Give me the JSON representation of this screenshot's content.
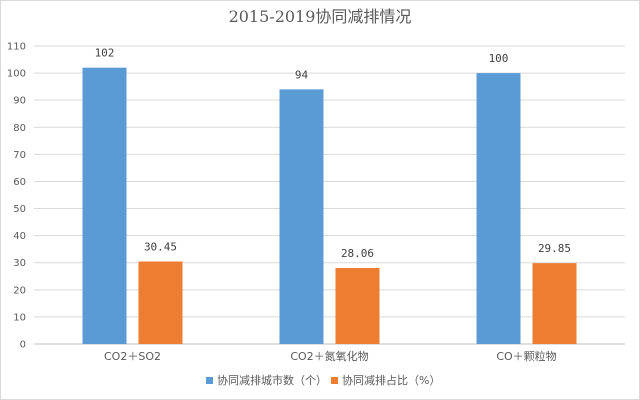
{
  "chart_data": {
    "type": "bar",
    "title": "2015-2019协同减排情况",
    "categories": [
      "CO2＋SO2",
      "CO2＋氮氧化物",
      "CO＋颗粒物"
    ],
    "series": [
      {
        "name": "协同减排城市数（个）",
        "values": [
          102,
          94,
          100
        ],
        "labels": [
          "102",
          "94",
          "100"
        ],
        "color": "#5b9bd5"
      },
      {
        "name": "协同减排占比（%）",
        "values": [
          30.45,
          28.06,
          29.85
        ],
        "labels": [
          "30.45",
          "28.06",
          "29.85"
        ],
        "color": "#ed7d31"
      }
    ],
    "ylim": [
      0,
      110
    ],
    "yticks": [
      "0",
      "10",
      "20",
      "30",
      "40",
      "50",
      "60",
      "70",
      "80",
      "90",
      "100",
      "110"
    ],
    "grid": true,
    "legend": "bottom"
  }
}
